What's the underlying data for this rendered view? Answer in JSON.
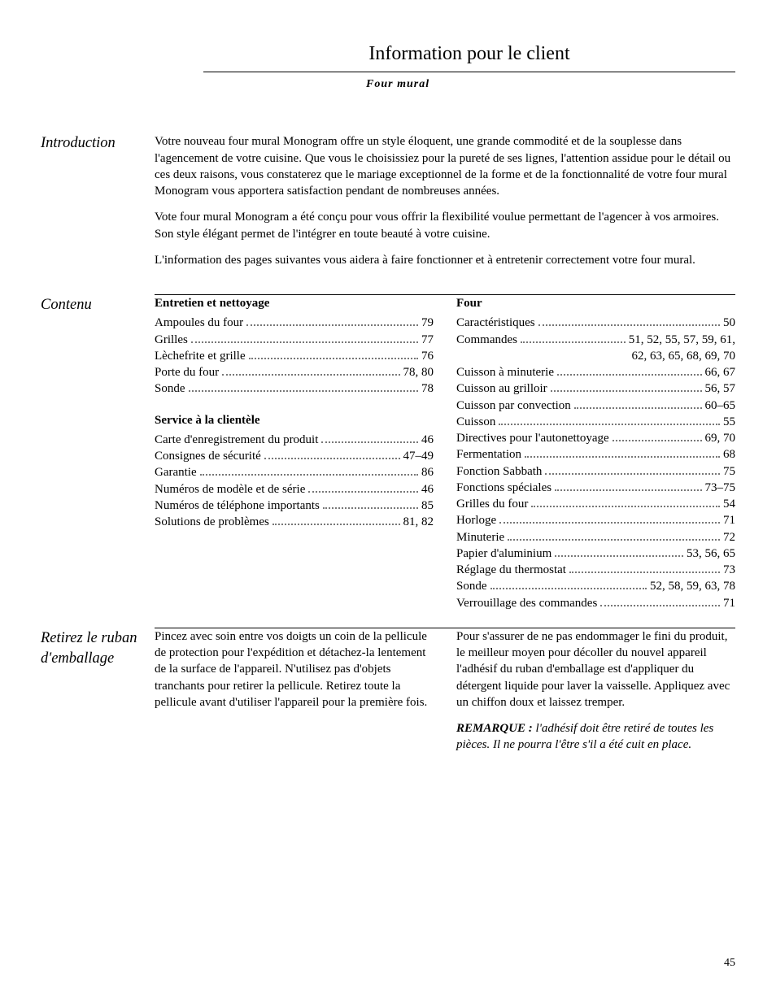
{
  "page_number": "45",
  "header": {
    "title": "Information pour le client",
    "subtitle": "Four mural"
  },
  "introduction": {
    "heading": "Introduction",
    "paragraphs": [
      "Votre nouveau four mural Monogram offre un style éloquent, une grande commodité et de la souplesse dans l'agencement de votre cuisine. Que vous le choisissiez pour la pureté de ses lignes, l'attention assidue pour le détail ou ces deux raisons, vous constaterez que le mariage exceptionnel de la forme et de la fonctionnalité de votre four mural Monogram vous apportera satisfaction pendant de nombreuses années.",
      "Vote four mural Monogram a été conçu pour vous offrir la flexibilité voulue permettant de l'agencer à vos armoires. Son style élégant permet de l'intégrer en toute beauté à votre cuisine.",
      "L'information des pages suivantes vous aidera à faire fonctionner et à entretenir correctement votre four mural."
    ]
  },
  "contents": {
    "heading": "Contenu",
    "left": [
      {
        "title": "Entretien et nettoyage",
        "items": [
          {
            "label": "Ampoules du four",
            "page": "79"
          },
          {
            "label": "Grilles",
            "page": "77"
          },
          {
            "label": "Lèchefrite et grille",
            "page": "76"
          },
          {
            "label": "Porte du four",
            "page": "78, 80"
          },
          {
            "label": "Sonde",
            "page": "78"
          }
        ]
      },
      {
        "title": "Service à la clientèle",
        "items": [
          {
            "label": "Carte d'enregistrement du produit",
            "page": "46"
          },
          {
            "label": "Consignes de sécurité",
            "page": "47–49"
          },
          {
            "label": "Garantie",
            "page": "86"
          },
          {
            "label": "Numéros de modèle et de série",
            "page": "46"
          },
          {
            "label": "Numéros de téléphone importants",
            "page": "85"
          },
          {
            "label": "Solutions de problèmes",
            "page": "81, 82"
          }
        ]
      }
    ],
    "right": [
      {
        "title": "Four",
        "items": [
          {
            "label": "Caractéristiques",
            "page": "50"
          },
          {
            "label": "Commandes",
            "page": "51, 52, 55, 57, 59, 61,",
            "continuation": "62, 63, 65, 68, 69, 70"
          },
          {
            "label": "Cuisson à minuterie",
            "page": "66, 67"
          },
          {
            "label": "Cuisson au grilloir",
            "page": "56, 57"
          },
          {
            "label": "Cuisson par convection",
            "page": "60–65"
          },
          {
            "label": "Cuisson",
            "page": "55"
          },
          {
            "label": "Directives pour l'autonettoyage",
            "page": "69, 70"
          },
          {
            "label": "Fermentation",
            "page": "68"
          },
          {
            "label": "Fonction Sabbath",
            "page": "75"
          },
          {
            "label": "Fonctions spéciales",
            "page": "73–75"
          },
          {
            "label": "Grilles du four",
            "page": "54"
          },
          {
            "label": "Horloge",
            "page": "71"
          },
          {
            "label": "Minuterie",
            "page": "72"
          },
          {
            "label": "Papier d'aluminium",
            "page": "53, 56, 65"
          },
          {
            "label": "Réglage du thermostat",
            "page": "73"
          },
          {
            "label": "Sonde",
            "page": "52, 58, 59, 63, 78"
          },
          {
            "label": "Verrouillage des commandes",
            "page": "71"
          }
        ]
      }
    ]
  },
  "remove_tape": {
    "heading": "Retirez le ruban d'emballage",
    "left_paragraphs": [
      "Pincez avec soin entre vos doigts un coin de la pellicule de protection pour l'expédition et détachez-la lentement de la surface de l'appareil. N'utilisez pas d'objets tranchants pour retirer la pellicule. Retirez toute la pellicule avant d'utiliser l'appareil pour la première fois."
    ],
    "right_paragraphs": [
      "Pour s'assurer de ne pas endommager le fini du produit, le meilleur moyen pour décoller du nouvel appareil l'adhésif du ruban d'emballage est d'appliquer du détergent liquide pour laver la vaisselle. Appliquez avec un chiffon doux et laissez tremper."
    ],
    "note_label": "REMARQUE : ",
    "note_body": "l'adhésif doit être retiré de toutes les pièces. Il ne pourra l'être s'il a été cuit en place."
  }
}
